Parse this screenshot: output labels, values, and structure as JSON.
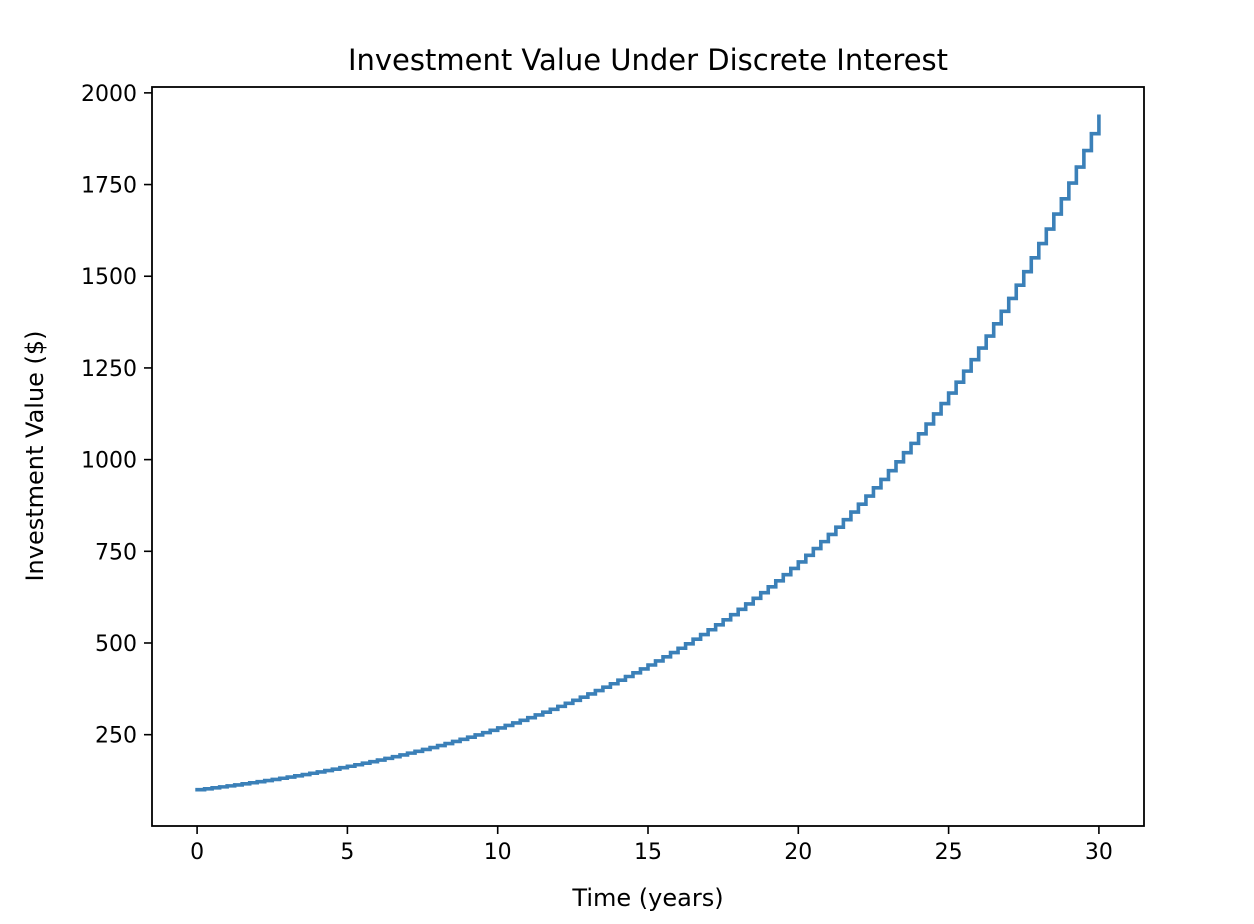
{
  "chart_data": {
    "type": "line",
    "title": "Investment Value Under Discrete Interest",
    "xlabel": "Time (years)",
    "ylabel": "Investment Value ($)",
    "xlim": [
      -1.5,
      31.5
    ],
    "ylim": [
      1,
      2016
    ],
    "x_ticks": [
      0,
      5,
      10,
      15,
      20,
      25,
      30
    ],
    "y_ticks": [
      250,
      500,
      750,
      1000,
      1250,
      1500,
      1750,
      2000
    ],
    "grid": false,
    "legend": "none",
    "series": [
      {
        "color": "#3b80b8",
        "step": "post",
        "x": [
          0,
          0.25,
          0.5,
          0.75,
          1,
          1.25,
          1.5,
          1.75,
          2,
          2.25,
          2.5,
          2.75,
          3,
          3.25,
          3.5,
          3.75,
          4,
          4.25,
          4.5,
          4.75,
          5,
          5.25,
          5.5,
          5.75,
          6,
          6.25,
          6.5,
          6.75,
          7,
          7.25,
          7.5,
          7.75,
          8,
          8.25,
          8.5,
          8.75,
          9,
          9.25,
          9.5,
          9.75,
          10,
          10.25,
          10.5,
          10.75,
          11,
          11.25,
          11.5,
          11.75,
          12,
          12.25,
          12.5,
          12.75,
          13,
          13.25,
          13.5,
          13.75,
          14,
          14.25,
          14.5,
          14.75,
          15,
          15.25,
          15.5,
          15.75,
          16,
          16.25,
          16.5,
          16.75,
          17,
          17.25,
          17.5,
          17.75,
          18,
          18.25,
          18.5,
          18.75,
          19,
          19.25,
          19.5,
          19.75,
          20,
          20.25,
          20.5,
          20.75,
          21,
          21.25,
          21.5,
          21.75,
          22,
          22.25,
          22.5,
          22.75,
          23,
          23.25,
          23.5,
          23.75,
          24,
          24.25,
          24.5,
          24.75,
          25,
          25.25,
          25.5,
          25.75,
          26,
          26.25,
          26.5,
          26.75,
          27,
          27.25,
          27.5,
          27.75,
          28,
          28.25,
          28.5,
          28.75,
          29,
          29.25,
          29.5,
          29.75,
          30
        ],
        "y": [
          100,
          102.5,
          105.1,
          107.7,
          110.4,
          113.1,
          116,
          118.9,
          121.8,
          124.9,
          128,
          131.2,
          134.5,
          137.9,
          141.3,
          144.8,
          148.5,
          152.2,
          156,
          159.9,
          163.9,
          168,
          172.2,
          176.5,
          180.9,
          185.4,
          190.1,
          194.8,
          199.7,
          204.7,
          209.8,
          215,
          220.4,
          225.9,
          231.6,
          237.4,
          243.3,
          249.4,
          255.6,
          262,
          268.5,
          275.2,
          282.1,
          289.2,
          296.4,
          303.8,
          311.4,
          319.2,
          327.2,
          335.4,
          343.7,
          352.3,
          361.1,
          370.2,
          379.4,
          388.9,
          398.6,
          408.6,
          418.8,
          429.3,
          440,
          451,
          462.3,
          473.9,
          485.7,
          497.8,
          510.3,
          523,
          536.1,
          549.5,
          563.3,
          577.3,
          591.8,
          606.6,
          621.7,
          637.3,
          653.2,
          669.5,
          686.3,
          703.4,
          721,
          739,
          757.5,
          776.4,
          795.9,
          815.8,
          836.2,
          857.1,
          878.5,
          900.5,
          923,
          946.1,
          969.7,
          993.9,
          1018.8,
          1044.3,
          1070.4,
          1097.1,
          1124.6,
          1152.7,
          1181.5,
          1211,
          1241.3,
          1272.4,
          1304.2,
          1336.8,
          1370.2,
          1404.4,
          1439.6,
          1475.6,
          1512.4,
          1550.3,
          1589,
          1628.7,
          1669.5,
          1711.2,
          1754,
          1797.8,
          1842.8,
          1888.8,
          1936
        ]
      }
    ]
  }
}
